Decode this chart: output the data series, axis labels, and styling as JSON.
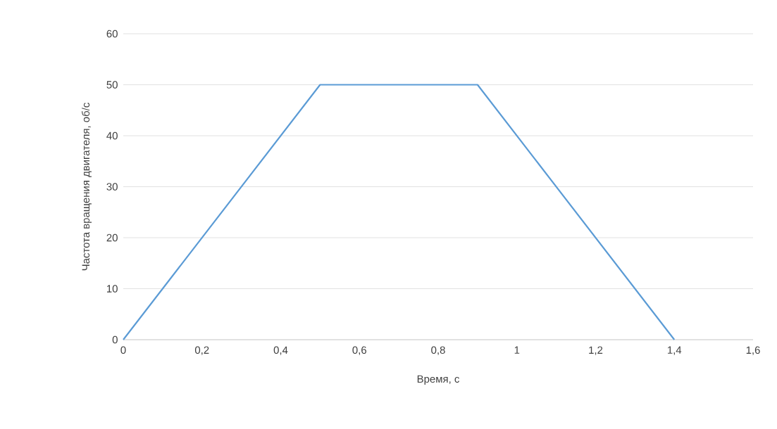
{
  "chart_data": {
    "type": "line",
    "xlabel": "Время, с",
    "ylabel": "Частота вращения двигателя, об/с",
    "x": [
      0,
      0.5,
      0.9,
      1.4
    ],
    "values": [
      0,
      50,
      50,
      0
    ],
    "color": "#5b9bd5",
    "xlim": [
      0,
      1.6
    ],
    "ylim": [
      0,
      60
    ],
    "xticks": [
      0,
      {
        "value": 0.2,
        "label": "0,2"
      },
      {
        "value": 0.4,
        "label": "0,4"
      },
      {
        "value": 0.6,
        "label": "0,6"
      },
      {
        "value": 0.8,
        "label": "0,8"
      },
      1,
      {
        "value": 1.2,
        "label": "1,2"
      },
      {
        "value": 1.4,
        "label": "1,4"
      },
      {
        "value": 1.6,
        "label": "1,6"
      }
    ],
    "yticks": [
      0,
      10,
      20,
      30,
      40,
      50,
      60
    ],
    "grid": "y"
  }
}
